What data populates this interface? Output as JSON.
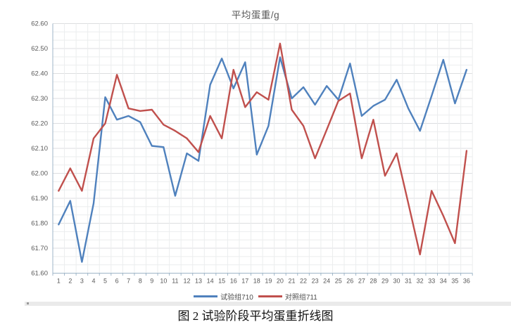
{
  "page": {
    "caption": "图 2 试验阶段平均蛋重折线图"
  },
  "chart_data": {
    "type": "line",
    "title": "平均蛋重/g",
    "categories": [
      1,
      2,
      3,
      4,
      5,
      6,
      7,
      8,
      9,
      10,
      11,
      12,
      13,
      14,
      15,
      16,
      17,
      18,
      19,
      20,
      21,
      22,
      23,
      24,
      25,
      26,
      27,
      28,
      29,
      30,
      31,
      32,
      33,
      34,
      35,
      36
    ],
    "series": [
      {
        "name": "试验组710",
        "color": "#4F81BD",
        "values": [
          61.795,
          61.89,
          61.645,
          61.88,
          62.305,
          62.215,
          62.23,
          62.205,
          62.11,
          62.105,
          61.91,
          62.08,
          62.05,
          62.355,
          62.46,
          62.34,
          62.445,
          62.075,
          62.19,
          62.465,
          62.3,
          62.345,
          62.275,
          62.35,
          62.295,
          62.44,
          62.23,
          62.27,
          62.295,
          62.375,
          62.26,
          62.17,
          62.31,
          62.455,
          62.28,
          62.415
        ]
      },
      {
        "name": "对照组711",
        "color": "#C0504D",
        "values": [
          61.93,
          62.02,
          61.93,
          62.14,
          62.2,
          62.395,
          62.26,
          62.25,
          62.255,
          62.195,
          62.17,
          62.14,
          62.085,
          62.23,
          62.14,
          62.415,
          62.265,
          62.325,
          62.295,
          62.52,
          62.255,
          62.19,
          62.06,
          62.175,
          62.29,
          62.32,
          62.06,
          62.215,
          61.99,
          62.08,
          61.88,
          61.675,
          61.93,
          61.83,
          61.72,
          62.09
        ]
      }
    ],
    "ylim": [
      61.6,
      62.6
    ],
    "ytick_step": 0.1,
    "y_minor_per_major": 3,
    "grid": true,
    "legend_position": "bottom",
    "axis_color": "#9FB6C8",
    "grid_major_color": "#DCDEE0",
    "grid_minor_color": "#EBEDEE",
    "label_color": "#595959"
  }
}
